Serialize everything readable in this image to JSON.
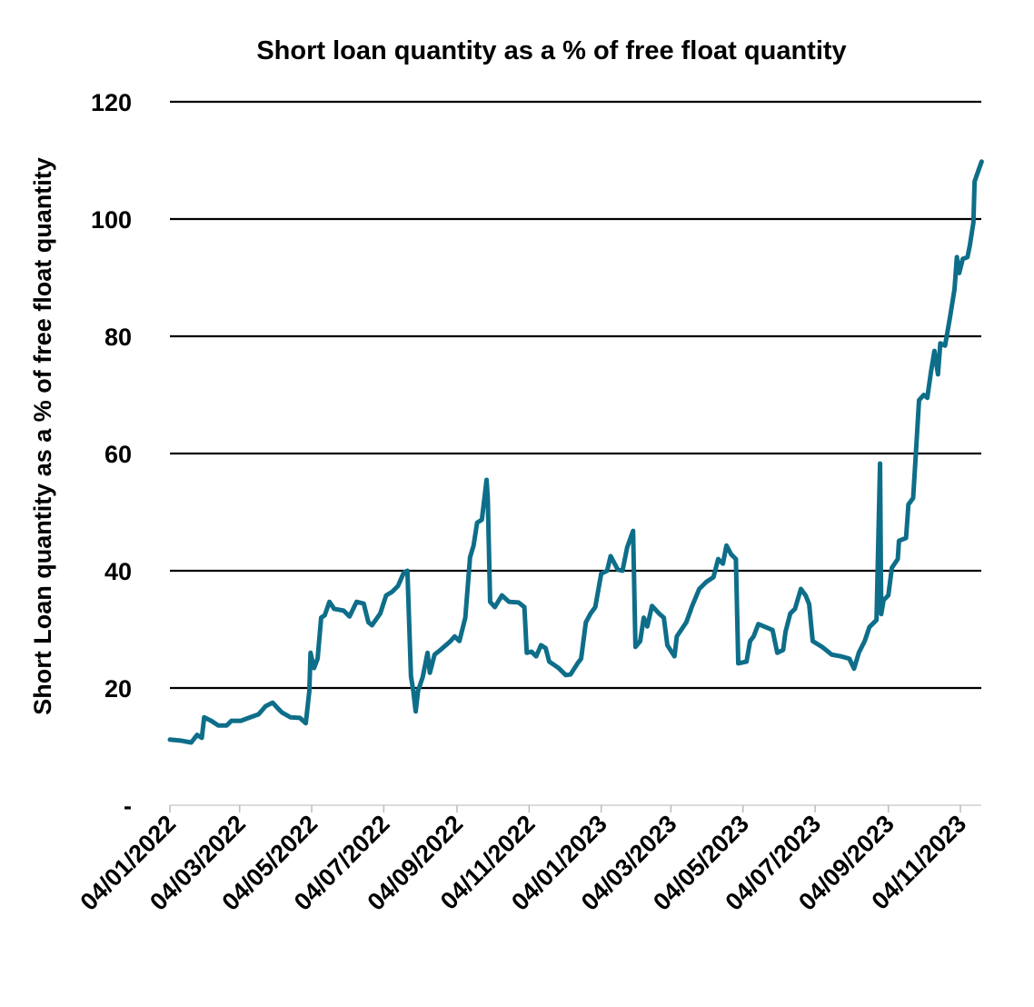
{
  "chart_data": {
    "type": "line",
    "title": "Short loan quantity as a % of free float quantity",
    "xlabel": "",
    "ylabel": "Short Loan quantity as a % of free float quantity",
    "ylim": [
      0,
      120
    ],
    "yticks": [
      0,
      20,
      40,
      60,
      80,
      100,
      120
    ],
    "ytick_labels": [
      "-",
      "20",
      "40",
      "60",
      "80",
      "100",
      "120"
    ],
    "xtick_labels": [
      "04/01/2022",
      "04/03/2022",
      "04/05/2022",
      "04/07/2022",
      "04/09/2022",
      "04/11/2022",
      "04/01/2023",
      "04/03/2023",
      "04/05/2023",
      "04/07/2023",
      "04/09/2023",
      "04/11/2023"
    ],
    "grid": "horizontal",
    "line_color": "#0E6E89",
    "series": [
      {
        "x": [
          "2022-01-04",
          "2022-01-14",
          "2022-01-22",
          "2022-01-27",
          "2022-01-31",
          "2022-02-02",
          "2022-02-08",
          "2022-02-14",
          "2022-02-21",
          "2022-02-25",
          "2022-03-05",
          "2022-03-13",
          "2022-03-20",
          "2022-03-26",
          "2022-04-01",
          "2022-04-05",
          "2022-04-09",
          "2022-04-16",
          "2022-04-24",
          "2022-04-29",
          "2022-05-02",
          "2022-05-03",
          "2022-05-06",
          "2022-05-09",
          "2022-05-12",
          "2022-05-15",
          "2022-05-19",
          "2022-05-23",
          "2022-05-31",
          "2022-06-05",
          "2022-06-11",
          "2022-06-17",
          "2022-06-21",
          "2022-06-24",
          "2022-07-01",
          "2022-07-06",
          "2022-07-11",
          "2022-07-16",
          "2022-07-21",
          "2022-07-24",
          "2022-07-27",
          "2022-07-29",
          "2022-07-31",
          "2022-08-02",
          "2022-08-06",
          "2022-08-10",
          "2022-08-12",
          "2022-08-16",
          "2022-08-21",
          "2022-08-29",
          "2022-09-02",
          "2022-09-06",
          "2022-09-11",
          "2022-09-15",
          "2022-09-18",
          "2022-09-21",
          "2022-09-25",
          "2022-09-29",
          "2022-09-30",
          "2022-10-02",
          "2022-10-06",
          "2022-10-12",
          "2022-10-18",
          "2022-10-26",
          "2022-10-31",
          "2022-11-02",
          "2022-11-06",
          "2022-11-10",
          "2022-11-14",
          "2022-11-18",
          "2022-11-21",
          "2022-11-29",
          "2022-12-05",
          "2022-12-09",
          "2022-12-15",
          "2022-12-18",
          "2022-12-22",
          "2022-12-26",
          "2022-12-30",
          "2023-01-04",
          "2023-01-09",
          "2023-01-12",
          "2023-01-18",
          "2023-01-22",
          "2023-01-26",
          "2023-01-31",
          "2023-02-02",
          "2023-02-06",
          "2023-02-09",
          "2023-02-12",
          "2023-02-16",
          "2023-02-22",
          "2023-02-26",
          "2023-03-01",
          "2023-03-07",
          "2023-03-09",
          "2023-03-17",
          "2023-03-22",
          "2023-03-28",
          "2023-04-03",
          "2023-04-09",
          "2023-04-13",
          "2023-04-17",
          "2023-04-20",
          "2023-04-24",
          "2023-04-28",
          "2023-04-30",
          "2023-05-07",
          "2023-05-10",
          "2023-05-13",
          "2023-05-17",
          "2023-05-23",
          "2023-05-29",
          "2023-06-02",
          "2023-06-07",
          "2023-06-09",
          "2023-06-13",
          "2023-06-17",
          "2023-06-22",
          "2023-06-26",
          "2023-06-29",
          "2023-07-02",
          "2023-07-10",
          "2023-07-18",
          "2023-07-26",
          "2023-08-02",
          "2023-08-06",
          "2023-08-10",
          "2023-08-15",
          "2023-08-19",
          "2023-08-25",
          "2023-08-28",
          "2023-08-29",
          "2023-08-31",
          "2023-09-04",
          "2023-09-07",
          "2023-09-12",
          "2023-09-13",
          "2023-09-19",
          "2023-09-21",
          "2023-09-25",
          "2023-09-27",
          "2023-09-30",
          "2023-10-04",
          "2023-10-07",
          "2023-10-10",
          "2023-10-13",
          "2023-10-16",
          "2023-10-18",
          "2023-10-22",
          "2023-10-26",
          "2023-10-30",
          "2023-11-01",
          "2023-11-03",
          "2023-11-06",
          "2023-11-10",
          "2023-11-12",
          "2023-11-15",
          "2023-11-16",
          "2023-11-20",
          "2023-11-22"
        ],
        "y": [
          11.2,
          11,
          10.7,
          12,
          11.5,
          15,
          14.4,
          13.6,
          13.6,
          14.4,
          14.4,
          15,
          15.5,
          16.9,
          17.5,
          16.6,
          15.8,
          15,
          14.9,
          14,
          19.5,
          26,
          23.4,
          25,
          32,
          32.4,
          34.7,
          33.5,
          33.2,
          32.2,
          34.7,
          34.4,
          31.2,
          30.7,
          32.7,
          35.8,
          36.4,
          37.4,
          39.7,
          40,
          22,
          19.5,
          16,
          19.5,
          21.9,
          26,
          22.6,
          25.7,
          26.5,
          27.9,
          28.8,
          28,
          32,
          42.3,
          44.3,
          48.2,
          48.7,
          55.5,
          52.4,
          34.7,
          33.8,
          35.8,
          34.7,
          34.6,
          33.8,
          26,
          26.2,
          25.4,
          27.3,
          26.8,
          24.5,
          23.4,
          22.2,
          22.3,
          24.2,
          25,
          31.2,
          32.7,
          33.8,
          39.5,
          40,
          42.5,
          40.2,
          40,
          44,
          46.8,
          27,
          28,
          32,
          30.5,
          34,
          32.7,
          32,
          27.3,
          25.4,
          28.8,
          31.2,
          34,
          36.9,
          38.1,
          38.9,
          42,
          41.2,
          44.3,
          42.8,
          42,
          24.2,
          24.5,
          28,
          28.8,
          30.9,
          30.4,
          29.9,
          26,
          26.5,
          29.6,
          32.7,
          33.5,
          36.9,
          35.8,
          34.3,
          28,
          27,
          25.7,
          25.4,
          25,
          23.3,
          26,
          28,
          30.4,
          31.6,
          58.3,
          32.6,
          35,
          35.8,
          40.5,
          42,
          45.1,
          45.6,
          51.3,
          52.4,
          59,
          69.1,
          70,
          69.5,
          73.8,
          77.5,
          73.5,
          78.8,
          78.4,
          83,
          88,
          93.5,
          90.8,
          93.2,
          93.5,
          95.5,
          99.4,
          106.4,
          108.7,
          109.8
        ]
      }
    ]
  }
}
